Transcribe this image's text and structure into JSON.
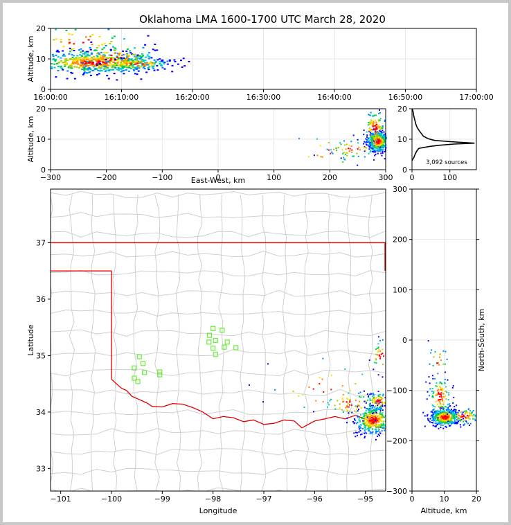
{
  "chart_data": [
    {
      "type": "scatter",
      "name": "altitude-time",
      "title": "Oklahoma LMA 1600-1700 UTC March 28, 2020",
      "xlabel": "",
      "ylabel": "Altitude, km",
      "xlim_minutes": [
        0,
        60
      ],
      "ylim": [
        0,
        20
      ],
      "x_ticks": [
        "16:00:00",
        "16:10:00",
        "16:20:00",
        "16:30:00",
        "16:40:00",
        "16:50:00",
        "17:00:00"
      ],
      "y_ticks": [
        "0",
        "10",
        "20"
      ],
      "clusters": [
        {
          "t": 6,
          "alt": 9,
          "st": 4.5,
          "sa": 1.7,
          "n": 520
        },
        {
          "t": 9,
          "alt": 10.5,
          "st": 3,
          "sa": 2.5,
          "n": 140
        },
        {
          "t": 12,
          "alt": 8.5,
          "st": 2.5,
          "sa": 1,
          "n": 90
        },
        {
          "t": 4,
          "alt": 16,
          "st": 4,
          "sa": 3,
          "n": 50
        }
      ]
    },
    {
      "type": "scatter",
      "name": "altitude-eastwest",
      "xlabel": "East-West, km",
      "ylabel": "Altitude, km",
      "xlim": [
        -300,
        300
      ],
      "ylim": [
        0,
        20
      ],
      "x_ticks": [
        "−300",
        "−200",
        "−100",
        "0",
        "100",
        "200",
        "300"
      ],
      "y_ticks": [
        "0",
        "10",
        "20"
      ],
      "clusters": [
        {
          "x": 285,
          "alt": 9.5,
          "sx": 9,
          "sa": 1.6,
          "n": 500
        },
        {
          "x": 280,
          "alt": 14,
          "sx": 10,
          "sa": 3,
          "n": 120
        },
        {
          "x": 240,
          "alt": 7,
          "sx": 25,
          "sa": 1.5,
          "n": 60
        },
        {
          "x": 190,
          "alt": 6,
          "sx": 40,
          "sa": 3,
          "n": 20
        }
      ]
    },
    {
      "type": "line",
      "name": "altitude-histogram",
      "annotation": "3,092 sources",
      "xlim": [
        0,
        170
      ],
      "ylim": [
        0,
        20
      ],
      "x_ticks": [
        "0",
        "100"
      ],
      "y_ticks": [
        "0",
        "10",
        "20"
      ],
      "points": [
        [
          0,
          3
        ],
        [
          5,
          4
        ],
        [
          8,
          5
        ],
        [
          12,
          6
        ],
        [
          18,
          7
        ],
        [
          45,
          7.6
        ],
        [
          70,
          8.0
        ],
        [
          110,
          8.4
        ],
        [
          165,
          8.7
        ],
        [
          100,
          9.2
        ],
        [
          60,
          9.6
        ],
        [
          42,
          10.2
        ],
        [
          30,
          11
        ],
        [
          24,
          12
        ],
        [
          18,
          13
        ],
        [
          13,
          14
        ],
        [
          10,
          15
        ],
        [
          8,
          16
        ],
        [
          6,
          17
        ],
        [
          4,
          18
        ],
        [
          3,
          19
        ],
        [
          1,
          20
        ]
      ]
    },
    {
      "type": "scatter",
      "name": "map-plan-view",
      "xlabel": "Longitude",
      "ylabel": "Latitude",
      "xlim": [
        -101.2,
        -94.6
      ],
      "ylim": [
        32.6,
        37.95
      ],
      "x_ticks": [
        "−101",
        "−100",
        "−99",
        "−98",
        "−97",
        "−96",
        "−95"
      ],
      "y_ticks": [
        "33",
        "34",
        "35",
        "36",
        "37"
      ],
      "state_border_north_lat": 37.0,
      "panhandle_lat": 36.5,
      "panhandle_lon": -100.0,
      "red_river": [
        [
          -100.0,
          34.58
        ],
        [
          -99.9,
          34.5
        ],
        [
          -99.8,
          34.42
        ],
        [
          -99.7,
          34.38
        ],
        [
          -99.6,
          34.28
        ],
        [
          -99.5,
          34.24
        ],
        [
          -99.4,
          34.2
        ],
        [
          -99.3,
          34.16
        ],
        [
          -99.2,
          34.1
        ],
        [
          -99.0,
          34.09
        ],
        [
          -98.8,
          34.15
        ],
        [
          -98.6,
          34.14
        ],
        [
          -98.4,
          34.08
        ],
        [
          -98.2,
          34.0
        ],
        [
          -98.0,
          33.88
        ],
        [
          -97.8,
          33.92
        ],
        [
          -97.6,
          33.9
        ],
        [
          -97.4,
          33.83
        ],
        [
          -97.2,
          33.86
        ],
        [
          -97.0,
          33.78
        ],
        [
          -96.8,
          33.8
        ],
        [
          -96.6,
          33.86
        ],
        [
          -96.4,
          33.84
        ],
        [
          -96.25,
          33.72
        ],
        [
          -96.0,
          33.84
        ],
        [
          -95.8,
          33.88
        ],
        [
          -95.6,
          33.92
        ],
        [
          -95.4,
          33.88
        ],
        [
          -95.2,
          33.94
        ],
        [
          -95.0,
          33.88
        ],
        [
          -94.8,
          33.75
        ],
        [
          -94.6,
          33.7
        ]
      ],
      "stations": [
        [
          -98.0,
          35.48
        ],
        [
          -97.82,
          35.45
        ],
        [
          -98.07,
          35.36
        ],
        [
          -98.08,
          35.24
        ],
        [
          -97.95,
          35.27
        ],
        [
          -97.72,
          35.24
        ],
        [
          -98.0,
          35.13
        ],
        [
          -97.78,
          35.15
        ],
        [
          -97.55,
          35.14
        ],
        [
          -97.95,
          35.02
        ],
        [
          -99.45,
          34.98
        ],
        [
          -99.38,
          34.86
        ],
        [
          -99.55,
          34.78
        ],
        [
          -99.35,
          34.7
        ],
        [
          -99.05,
          34.71
        ],
        [
          -99.55,
          34.6
        ],
        [
          -99.48,
          34.54
        ],
        [
          -99.05,
          34.66
        ]
      ],
      "clusters": [
        {
          "lon": -94.85,
          "lat": 33.87,
          "slon": 0.18,
          "slat": 0.12,
          "n": 420
        },
        {
          "lon": -94.75,
          "lat": 34.2,
          "slon": 0.12,
          "slat": 0.08,
          "n": 100
        },
        {
          "lon": -95.3,
          "lat": 34.15,
          "slon": 0.3,
          "slat": 0.12,
          "n": 60
        },
        {
          "lon": -94.7,
          "lat": 35.0,
          "slon": 0.1,
          "slat": 0.15,
          "n": 40
        },
        {
          "lon": -95.8,
          "lat": 34.4,
          "slon": 0.6,
          "slat": 0.3,
          "n": 30
        }
      ]
    },
    {
      "type": "scatter",
      "name": "northsouth-altitude",
      "xlabel": "Altitude, km",
      "ylabel": "North-South, km",
      "xlim": [
        0,
        20
      ],
      "ylim": [
        -300,
        300
      ],
      "x_ticks": [
        "0",
        "10",
        "20"
      ],
      "y_ticks": [
        "−300",
        "−200",
        "−100",
        "0",
        "100",
        "200",
        "300"
      ],
      "clusters": [
        {
          "alt": 10,
          "ns": -152,
          "sa": 2.2,
          "sns": 8,
          "n": 500
        },
        {
          "alt": 8.5,
          "ns": -110,
          "sa": 1.8,
          "sns": 20,
          "n": 120
        },
        {
          "alt": 16,
          "ns": -150,
          "sa": 2.5,
          "sns": 8,
          "n": 80
        },
        {
          "alt": 8,
          "ns": -40,
          "sa": 1.5,
          "sns": 15,
          "n": 20
        }
      ]
    }
  ],
  "colors": {
    "density": [
      "#0000ff",
      "#0088ff",
      "#00cccc",
      "#00cc44",
      "#aacc00",
      "#ffdd00",
      "#ff8800",
      "#ff0000",
      "#000000"
    ],
    "border": "#e00000",
    "county": "#cfcfcf",
    "station": "#66ee33"
  }
}
